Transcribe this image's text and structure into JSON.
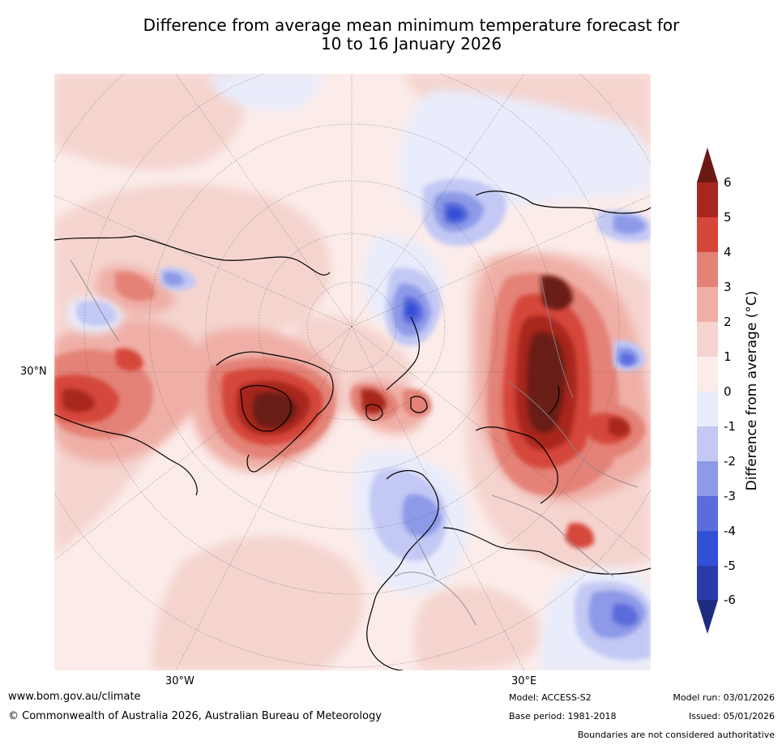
{
  "title": {
    "line1": "Difference from average mean minimum temperature forecast for",
    "line2": "10 to 16 January 2026"
  },
  "map": {
    "projection": "north-polar-stereographic",
    "lat_label": "30°N",
    "lon_labels": [
      "30°W",
      "30°E"
    ],
    "features": [
      {
        "name": "central-siberia-warm",
        "anomaly": 6
      },
      {
        "name": "north-america-warm",
        "anomaly": 4
      },
      {
        "name": "greenland-warm",
        "anomaly": 6
      },
      {
        "name": "svalbard-warm",
        "anomaly": 5
      },
      {
        "name": "northern-europe-cool",
        "anomaly": -3
      },
      {
        "name": "central-asia-cool",
        "anomaly": -4
      },
      {
        "name": "kara-sea-cool",
        "anomaly": -4
      },
      {
        "name": "north-pacific-cool",
        "anomaly": -2
      }
    ]
  },
  "colorbar": {
    "title": "Difference from average (°C)",
    "ticks": [
      "6",
      "5",
      "4",
      "3",
      "2",
      "1",
      "0",
      "-1",
      "-2",
      "-3",
      "-4",
      "-5",
      "-6"
    ],
    "colors": {
      "above6": "#6b1a13",
      "b5_6": "#a8271f",
      "b4_5": "#d6473b",
      "b3_4": "#e48277",
      "b2_3": "#efafa6",
      "b1_2": "#f5d4cf",
      "b0_1": "#fbecea",
      "bm1_0": "#e9ecfb",
      "bm2_m1": "#c3c9f4",
      "bm3_m2": "#8d9ae8",
      "bm4_m3": "#5b6cdd",
      "bm5_m4": "#3250d6",
      "bm6_m5": "#2a3caa",
      "below_m6": "#1e2c80"
    }
  },
  "footer": {
    "url": "www.bom.gov.au/climate",
    "copyright": "© Commonwealth of Australia 2026, Australian Bureau of Meteorology",
    "model": "Model: ACCESS-S2",
    "base_period": "Base period: 1981-2018",
    "model_run": "Model run: 03/01/2026",
    "issued": "Issued: 05/01/2026",
    "boundaries": "Boundaries are not considered authoritative"
  }
}
